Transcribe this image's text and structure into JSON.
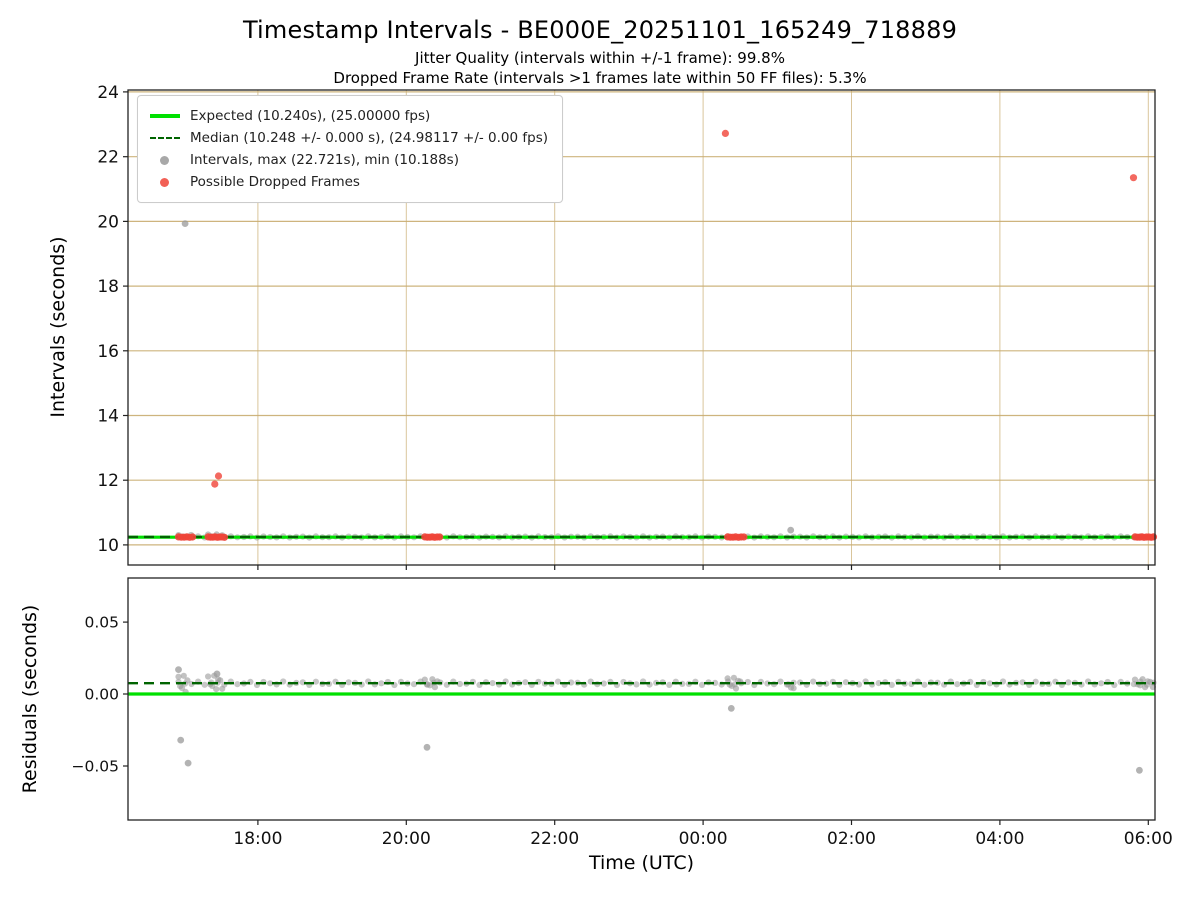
{
  "chart_data": {
    "type": "scatter",
    "title": "Timestamp Intervals - BE000E_20251101_165249_718889",
    "subtitles": [
      "Jitter Quality (intervals within +/-1 frame): 99.8%",
      "Dropped Frame Rate (intervals >1 frames late within 50 FF files): 5.3%"
    ],
    "xlabel": "Time (UTC)",
    "xlim": [
      16.25,
      30.09
    ],
    "x_ticks": [
      {
        "v": 18,
        "label": "18:00"
      },
      {
        "v": 20,
        "label": "20:00"
      },
      {
        "v": 22,
        "label": "22:00"
      },
      {
        "v": 24,
        "label": "00:00"
      },
      {
        "v": 26,
        "label": "02:00"
      },
      {
        "v": 28,
        "label": "04:00"
      },
      {
        "v": 30,
        "label": "06:00"
      }
    ],
    "colors": {
      "expected": "#00e000",
      "median": "#006400",
      "points": "#999999",
      "dropped": "#f04438",
      "grid": "#c9ac70"
    },
    "legend": [
      {
        "marker": "line",
        "label": "Expected (10.240s), (25.00000 fps)"
      },
      {
        "marker": "dashed",
        "label": "Median (10.248 +/- 0.000 s), (24.98117 +/- 0.00 fps)"
      },
      {
        "marker": "dot-gray",
        "label": "Intervals, max (22.721s), min (10.188s)"
      },
      {
        "marker": "dot-red",
        "label": "Possible Dropped Frames"
      }
    ],
    "stats": {
      "jitter_quality_pct": 99.8,
      "dropped_frame_rate_pct": 5.3,
      "expected_interval_s": 10.24,
      "expected_fps": 25.0,
      "median_interval_s": 10.248,
      "median_fps": 24.98117,
      "max_interval_s": 22.721,
      "min_interval_s": 10.188
    },
    "top": {
      "ylabel": "Intervals (seconds)",
      "ylim": [
        9.38,
        24.06
      ],
      "y_ticks": [
        {
          "v": 10,
          "label": "10"
        },
        {
          "v": 12,
          "label": "12"
        },
        {
          "v": 14,
          "label": "14"
        },
        {
          "v": 16,
          "label": "16"
        },
        {
          "v": 18,
          "label": "18"
        },
        {
          "v": 20,
          "label": "20"
        },
        {
          "v": 22,
          "label": "22"
        },
        {
          "v": 24,
          "label": "24"
        }
      ],
      "grid": true,
      "expected_value": 10.24,
      "median_value": 10.248,
      "baseline": {
        "from": 16.93,
        "to": 30.07,
        "count": 150,
        "value": 10.247,
        "spread": 0.02
      },
      "gray_clusters": [
        {
          "from": 16.93,
          "to": 17.1,
          "count": 4,
          "value": 10.27,
          "spread": 0.04
        },
        {
          "from": 17.33,
          "to": 17.52,
          "count": 6,
          "value": 10.28,
          "spread": 0.05
        }
      ],
      "gray_points": [
        [
          17.02,
          19.93
        ],
        [
          25.18,
          10.46
        ]
      ],
      "red_clusters": [
        {
          "from": 16.93,
          "to": 17.12,
          "count": 6,
          "value": 10.242,
          "spread": 0.006
        },
        {
          "from": 17.33,
          "to": 17.55,
          "count": 8,
          "value": 10.242,
          "spread": 0.006
        },
        {
          "from": 20.25,
          "to": 20.45,
          "count": 7,
          "value": 10.242,
          "spread": 0.006
        },
        {
          "from": 24.33,
          "to": 24.55,
          "count": 7,
          "value": 10.242,
          "spread": 0.006
        },
        {
          "from": 29.82,
          "to": 30.07,
          "count": 9,
          "value": 10.242,
          "spread": 0.006
        }
      ],
      "red_points": [
        [
          17.42,
          11.88
        ],
        [
          17.47,
          12.13
        ],
        [
          20.28,
          20.69
        ],
        [
          24.3,
          22.72
        ],
        [
          29.8,
          21.35
        ]
      ]
    },
    "bottom": {
      "ylabel": "Residuals (seconds)",
      "ylim": [
        -0.0875,
        0.0806
      ],
      "y_ticks": [
        {
          "v": -0.05,
          "label": "−0.05"
        },
        {
          "v": 0,
          "label": "0.00"
        },
        {
          "v": 0.05,
          "label": "0.05"
        }
      ],
      "grid": false,
      "expected_value": 0.0,
      "median_value": 0.0075,
      "baseline": {
        "from": 16.93,
        "to": 30.07,
        "count": 150,
        "value": 0.0075,
        "spread": 0.0012
      },
      "gray_clusters": [
        {
          "from": 16.93,
          "to": 17.05,
          "count": 6,
          "value": 0.007,
          "spread": 0.006
        },
        {
          "from": 17.33,
          "to": 17.52,
          "count": 8,
          "value": 0.008,
          "spread": 0.005
        },
        {
          "from": 20.25,
          "to": 20.42,
          "count": 6,
          "value": 0.0075,
          "spread": 0.003
        },
        {
          "from": 24.33,
          "to": 24.5,
          "count": 7,
          "value": 0.0075,
          "spread": 0.004
        },
        {
          "from": 25.15,
          "to": 25.22,
          "count": 3,
          "value": 0.005,
          "spread": 0.002
        },
        {
          "from": 29.82,
          "to": 30.06,
          "count": 8,
          "value": 0.0075,
          "spread": 0.003
        }
      ],
      "gray_points": [
        [
          16.93,
          0.017
        ],
        [
          16.96,
          -0.032
        ],
        [
          17.06,
          -0.048
        ],
        [
          17.45,
          0.014
        ],
        [
          20.28,
          -0.037
        ],
        [
          24.38,
          -0.01
        ],
        [
          29.88,
          -0.053
        ]
      ],
      "red_clusters": [],
      "red_points": []
    }
  }
}
